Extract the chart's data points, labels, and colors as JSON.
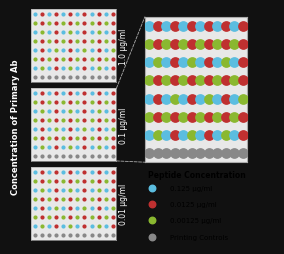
{
  "background_color": "#111111",
  "panel_bg": "#e8e8e8",
  "colors": {
    "blue": "#5bbde0",
    "red": "#bf3030",
    "green": "#8ab830",
    "gray": "#888888"
  },
  "legend_title": "Peptide Concentration",
  "legend_items": [
    {
      "label": "0.125 μg/ml",
      "color": "#5bbde0"
    },
    {
      "label": "0.0125 μg/ml",
      "color": "#bf3030"
    },
    {
      "label": "0.00125 μg/ml",
      "color": "#8ab830"
    },
    {
      "label": "Printing Controls",
      "color": "#888888"
    }
  ],
  "panel_labels": [
    "1.0 μg/ml",
    "0.1 μg/ml",
    "0.01 μg/ml"
  ],
  "y_axis_label": "Concentration of Primary Ab",
  "n_cols": 12,
  "n_rows": 8,
  "dot_pattern": [
    [
      0,
      1,
      0,
      1,
      0,
      1,
      0,
      1,
      0,
      1,
      0,
      1
    ],
    [
      2,
      1,
      2,
      1,
      2,
      1,
      2,
      1,
      2,
      1,
      2,
      1
    ],
    [
      0,
      2,
      0,
      1,
      0,
      2,
      0,
      1,
      0,
      2,
      0,
      1
    ],
    [
      2,
      1,
      2,
      1,
      2,
      1,
      2,
      1,
      2,
      1,
      2,
      1
    ],
    [
      0,
      1,
      0,
      2,
      0,
      1,
      0,
      2,
      0,
      1,
      0,
      2
    ],
    [
      2,
      1,
      2,
      1,
      2,
      1,
      2,
      1,
      2,
      1,
      2,
      1
    ],
    [
      0,
      2,
      0,
      1,
      0,
      2,
      0,
      1,
      0,
      2,
      0,
      1
    ],
    [
      3,
      3,
      3,
      3,
      3,
      3,
      3,
      3,
      3,
      3,
      3,
      3
    ]
  ]
}
